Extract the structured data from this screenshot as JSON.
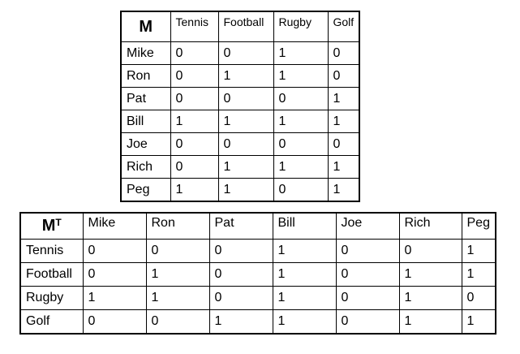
{
  "table_m": {
    "corner": "M",
    "columns": [
      "Tennis",
      "Football",
      "Rugby",
      "Golf"
    ],
    "rows": [
      {
        "name": "Mike",
        "values": [
          "0",
          "0",
          "1",
          "0"
        ]
      },
      {
        "name": "Ron",
        "values": [
          "0",
          "1",
          "1",
          "0"
        ]
      },
      {
        "name": "Pat",
        "values": [
          "0",
          "0",
          "0",
          "1"
        ]
      },
      {
        "name": "Bill",
        "values": [
          "1",
          "1",
          "1",
          "1"
        ]
      },
      {
        "name": "Joe",
        "values": [
          "0",
          "0",
          "0",
          "0"
        ]
      },
      {
        "name": "Rich",
        "values": [
          "0",
          "1",
          "1",
          "1"
        ]
      },
      {
        "name": "Peg",
        "values": [
          "1",
          "1",
          "0",
          "1"
        ]
      }
    ]
  },
  "table_mt": {
    "corner": "M",
    "corner_sup": "T",
    "columns": [
      "Mike",
      "Ron",
      "Pat",
      "Bill",
      "Joe",
      "Rich",
      "Peg"
    ],
    "rows": [
      {
        "name": "Tennis",
        "values": [
          "0",
          "0",
          "0",
          "1",
          "0",
          "0",
          "1"
        ]
      },
      {
        "name": "Football",
        "values": [
          "0",
          "1",
          "0",
          "1",
          "0",
          "1",
          "1"
        ]
      },
      {
        "name": "Rugby",
        "values": [
          "1",
          "1",
          "0",
          "1",
          "0",
          "1",
          "0"
        ]
      },
      {
        "name": "Golf",
        "values": [
          "0",
          "0",
          "1",
          "1",
          "0",
          "1",
          "1"
        ]
      }
    ]
  }
}
